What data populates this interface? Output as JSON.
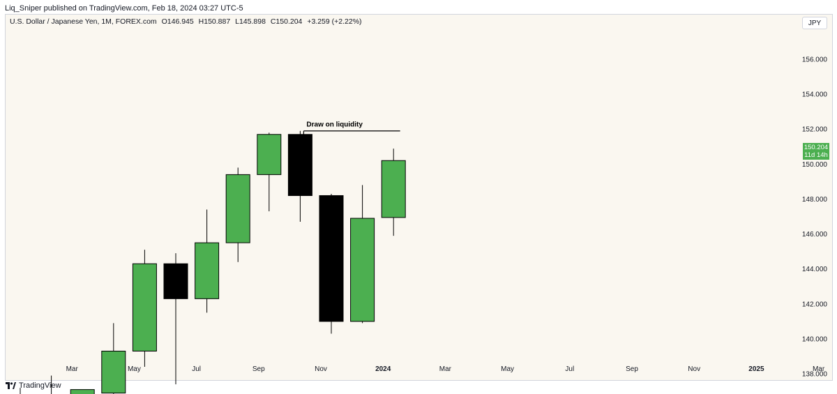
{
  "header": {
    "title": "Liq_Sniper published on TradingView.com, Feb 18, 2024 03:27 UTC-5"
  },
  "symbol": {
    "name": "U.S. Dollar / Japanese Yen, 1M, FOREX.com",
    "open": "O146.945",
    "high": "H150.887",
    "low": "L145.898",
    "close": "C150.204",
    "change": "+3.259 (+2.22%)"
  },
  "currency_button": "JPY",
  "last_price": {
    "value": "150.204",
    "countdown": "11d 14h",
    "color": "#4caf50"
  },
  "footer": {
    "brand": "TradingView"
  },
  "colors": {
    "up": "#4caf50",
    "down": "#000000",
    "background": "#faf7f0"
  },
  "chart_data": {
    "type": "candlestick",
    "title": "",
    "xlabel": "",
    "ylabel": "",
    "ylim": [
      136.5,
      157.5
    ],
    "y_ticks": [
      138,
      140,
      142,
      144,
      146,
      148,
      150,
      152,
      154,
      156
    ],
    "y_tick_labels": [
      "138.000",
      "140.000",
      "142.000",
      "144.000",
      "146.000",
      "148.000",
      "150.000",
      "152.000",
      "154.000",
      "156.000"
    ],
    "x_tick_labels": [
      "Mar",
      "May",
      "Jul",
      "Sep",
      "Nov",
      "2024",
      "Mar",
      "May",
      "Jul",
      "Sep",
      "Nov",
      "2025",
      "Mar"
    ],
    "x_tick_positions": [
      2,
      4,
      6,
      8,
      10,
      12,
      14,
      16,
      18,
      20,
      22,
      24,
      26
    ],
    "candles": [
      {
        "i": 0,
        "open": 136.7,
        "high": 137.2,
        "low": 136.7,
        "close": 136.75
      },
      {
        "i": 1,
        "open": 136.75,
        "high": 137.9,
        "low": 136.6,
        "close": 136.7
      },
      {
        "i": 2,
        "open": 136.7,
        "high": 137.1,
        "low": 136.7,
        "close": 137.1
      },
      {
        "i": 3,
        "open": 136.9,
        "high": 140.9,
        "low": 136.8,
        "close": 139.3
      },
      {
        "i": 4,
        "open": 139.3,
        "high": 145.1,
        "low": 138.4,
        "close": 144.3
      },
      {
        "i": 5,
        "open": 144.3,
        "high": 144.9,
        "low": 137.4,
        "close": 142.3
      },
      {
        "i": 6,
        "open": 142.3,
        "high": 147.4,
        "low": 141.5,
        "close": 145.5
      },
      {
        "i": 7,
        "open": 145.5,
        "high": 149.8,
        "low": 144.4,
        "close": 149.4
      },
      {
        "i": 8,
        "open": 149.4,
        "high": 151.8,
        "low": 147.3,
        "close": 151.7
      },
      {
        "i": 9,
        "open": 151.7,
        "high": 151.9,
        "low": 146.7,
        "close": 148.2
      },
      {
        "i": 10,
        "open": 148.2,
        "high": 148.3,
        "low": 140.3,
        "close": 141.0
      },
      {
        "i": 11,
        "open": 141.0,
        "high": 148.8,
        "low": 140.9,
        "close": 146.9
      },
      {
        "i": 12,
        "open": 146.945,
        "high": 150.887,
        "low": 145.898,
        "close": 150.204
      }
    ],
    "annotations": [
      {
        "text": "Draw on liquidity",
        "price": 151.9,
        "x_start": 9,
        "x_end": 12.1
      }
    ]
  }
}
